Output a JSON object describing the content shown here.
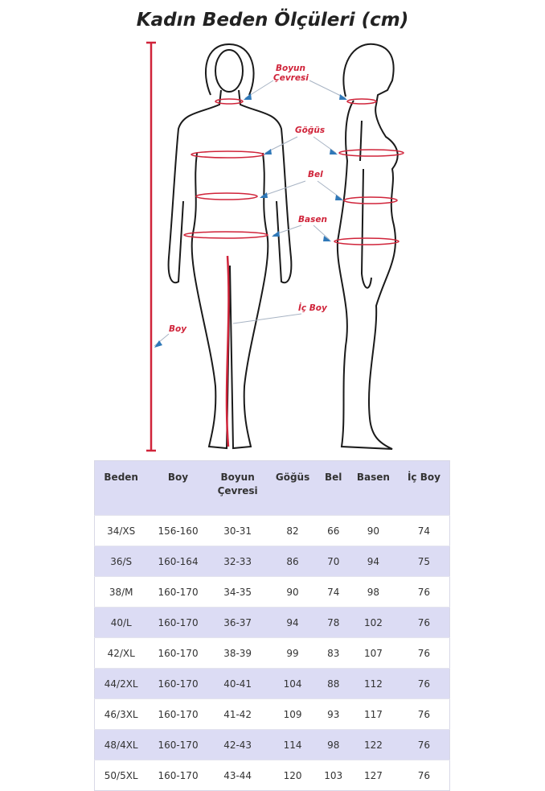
{
  "title": "Kadın Beden Ölçüleri (cm)",
  "labels": {
    "neck": [
      "Boyun",
      "Çevresi"
    ],
    "chest": "Göğüs",
    "waist": "Bel",
    "hip": "Basen",
    "inseam": "İç Boy",
    "height": "Boy"
  },
  "colors": {
    "measure_red": "#d0243a",
    "pointer_blue": "#2f78b8",
    "table_header": "#dcdcf4"
  },
  "table": {
    "headers": [
      "Beden",
      "Boy",
      "Boyun Çevresi",
      "Göğüs",
      "Bel",
      "Basen",
      "İç Boy"
    ],
    "rows": [
      [
        "34/XS",
        "156-160",
        "30-31",
        "82",
        "66",
        "90",
        "74"
      ],
      [
        "36/S",
        "160-164",
        "32-33",
        "86",
        "70",
        "94",
        "75"
      ],
      [
        "38/M",
        "160-170",
        "34-35",
        "90",
        "74",
        "98",
        "76"
      ],
      [
        "40/L",
        "160-170",
        "36-37",
        "94",
        "78",
        "102",
        "76"
      ],
      [
        "42/XL",
        "160-170",
        "38-39",
        "99",
        "83",
        "107",
        "76"
      ],
      [
        "44/2XL",
        "160-170",
        "40-41",
        "104",
        "88",
        "112",
        "76"
      ],
      [
        "46/3XL",
        "160-170",
        "41-42",
        "109",
        "93",
        "117",
        "76"
      ],
      [
        "48/4XL",
        "160-170",
        "42-43",
        "114",
        "98",
        "122",
        "76"
      ],
      [
        "50/5XL",
        "160-170",
        "43-44",
        "120",
        "103",
        "127",
        "76"
      ]
    ]
  }
}
